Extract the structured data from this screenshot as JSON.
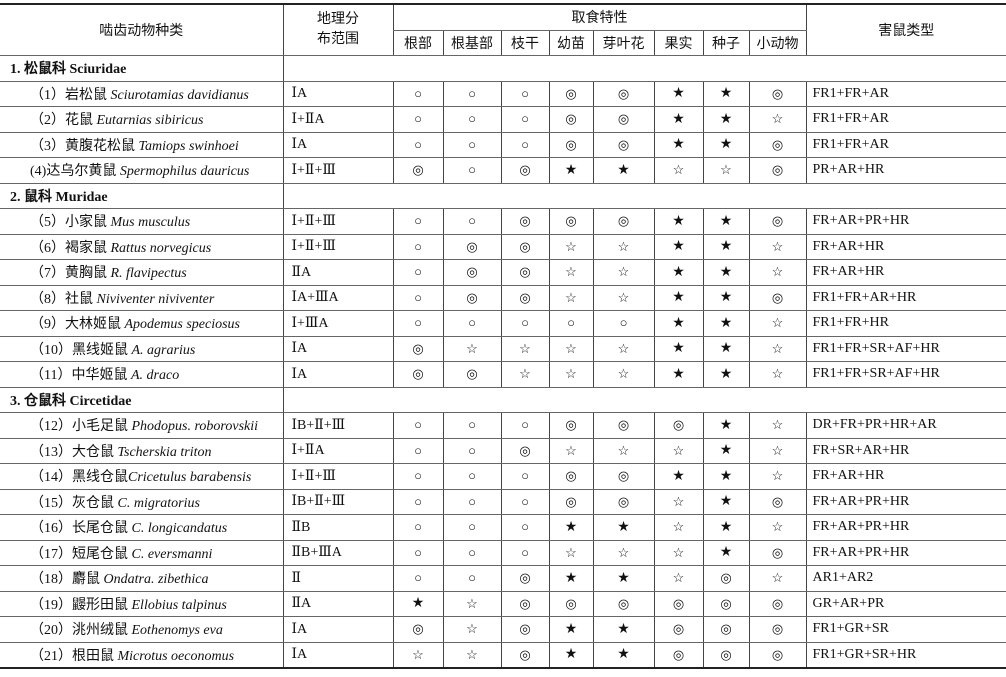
{
  "header": {
    "species": "啮齿动物种类",
    "geo": "地理分布范围",
    "geo_line1": "地理分",
    "geo_line2": "布范围",
    "feeding": "取食特性",
    "type": "害鼠类型",
    "feeding_cols": [
      "根部",
      "根基部",
      "枝干",
      "幼苗",
      "芽叶花",
      "果实",
      "种子",
      "小动物"
    ]
  },
  "symbols": {
    "O": "○",
    "D": "◎",
    "S": "★",
    "s": "☆"
  },
  "families": [
    {
      "label": "1. 松鼠科 Sciuridae",
      "rows": [
        {
          "cn": "（1）岩松鼠 ",
          "la": "Sciurotamias davidianus",
          "geo": "ⅠA",
          "f": "OOODDSSD",
          "type": "FR1+FR+AR"
        },
        {
          "cn": "（2）花鼠 ",
          "la": "Eutarnias sibiricus",
          "geo": "Ⅰ+ⅡA",
          "f": "OOODDSSs",
          "type": "FR1+FR+AR"
        },
        {
          "cn": "（3）黄腹花松鼠 ",
          "la": "Tamiops swinhoei",
          "geo": "ⅠA",
          "f": "OOODDSSD",
          "type": "FR1+FR+AR"
        },
        {
          "cn": "(4)达乌尔黄鼠 ",
          "la": "Spermophilus dauricus",
          "geo": "Ⅰ+Ⅱ+Ⅲ",
          "f": "DODSSssD",
          "type": "PR+AR+HR"
        }
      ]
    },
    {
      "label": "2. 鼠科 Muridae",
      "rows": [
        {
          "cn": "（5）小家鼠 ",
          "la": "Mus musculus",
          "geo": "Ⅰ+Ⅱ+Ⅲ",
          "f": "OODDDSSD",
          "type": "FR+AR+PR+HR"
        },
        {
          "cn": "（6）褐家鼠 ",
          "la": "Rattus norvegicus",
          "geo": "Ⅰ+Ⅱ+Ⅲ",
          "f": "ODDssSSs",
          "type": "FR+AR+HR"
        },
        {
          "cn": "（7）黄胸鼠 ",
          "la": "R. flavipectus",
          "geo": "ⅡA",
          "f": "ODDssSSs",
          "type": "FR+AR+HR"
        },
        {
          "cn": "（8）社鼠 ",
          "la": "Niviventer niviventer",
          "geo": "ⅠA+ⅢA",
          "f": "ODDssSSD",
          "type": "FR1+FR+AR+HR"
        },
        {
          "cn": "（9）大林姬鼠 ",
          "la": "Apodemus speciosus",
          "geo": "Ⅰ+ⅢA",
          "f": "OOOOOSSs",
          "type": "FR1+FR+HR"
        },
        {
          "cn": "（10）黑线姬鼠 ",
          "la": "A. agrarius",
          "geo": "ⅠA",
          "f": "DssssSSs",
          "type": "FR1+FR+SR+AF+HR"
        },
        {
          "cn": "（11）中华姬鼠 ",
          "la": "A. draco",
          "geo": "ⅠA",
          "f": "DDsssSSs",
          "type": "FR1+FR+SR+AF+HR"
        }
      ]
    },
    {
      "label": "3. 仓鼠科 Circetidae",
      "rows": [
        {
          "cn": "（12）小毛足鼠 ",
          "la": "Phodopus. roborovskii",
          "geo": "ⅠB+Ⅱ+Ⅲ",
          "f": "OOODDDSs",
          "type": "DR+FR+PR+HR+AR"
        },
        {
          "cn": "（13）大仓鼠 ",
          "la": "Tscherskia triton",
          "geo": "Ⅰ+ⅡA",
          "f": "OODsssSs",
          "type": "FR+SR+AR+HR"
        },
        {
          "cn": "（14）黑线仓鼠",
          "la": "Cricetulus barabensis",
          "geo": "Ⅰ+Ⅱ+Ⅲ",
          "f": "OOODDSSs",
          "type": "FR+AR+HR"
        },
        {
          "cn": "（15）灰仓鼠 ",
          "la": "C. migratorius",
          "geo": "ⅠB+Ⅱ+Ⅲ",
          "f": "OOODDsSD",
          "type": "FR+AR+PR+HR"
        },
        {
          "cn": "（16）长尾仓鼠 ",
          "la": "C. longicandatus",
          "geo": "ⅡB",
          "f": "OOOSSsSs",
          "type": "FR+AR+PR+HR"
        },
        {
          "cn": "（17）短尾仓鼠 ",
          "la": "C. eversmanni",
          "geo": "ⅡB+ⅢA",
          "f": "OOOsssSD",
          "type": "FR+AR+PR+HR"
        },
        {
          "cn": "（18）麝鼠 ",
          "la": "Ondatra. zibethica",
          "geo": "Ⅱ",
          "f": "OODSSsDs",
          "type": "AR1+AR2"
        },
        {
          "cn": "（19）鼹形田鼠 ",
          "la": "Ellobius talpinus",
          "geo": "ⅡA",
          "f": "SsDDDDDD",
          "type": "GR+AR+PR"
        },
        {
          "cn": "（20）洮州绒鼠 ",
          "la": "Eothenomys eva",
          "geo": "ⅠA",
          "f": "DsDSSDDD",
          "type": "FR1+GR+SR"
        },
        {
          "cn": "（21）根田鼠 ",
          "la": "Microtus oeconomus",
          "geo": "ⅠA",
          "f": "ssDSSDDD",
          "type": "FR1+GR+SR+HR"
        }
      ]
    }
  ]
}
